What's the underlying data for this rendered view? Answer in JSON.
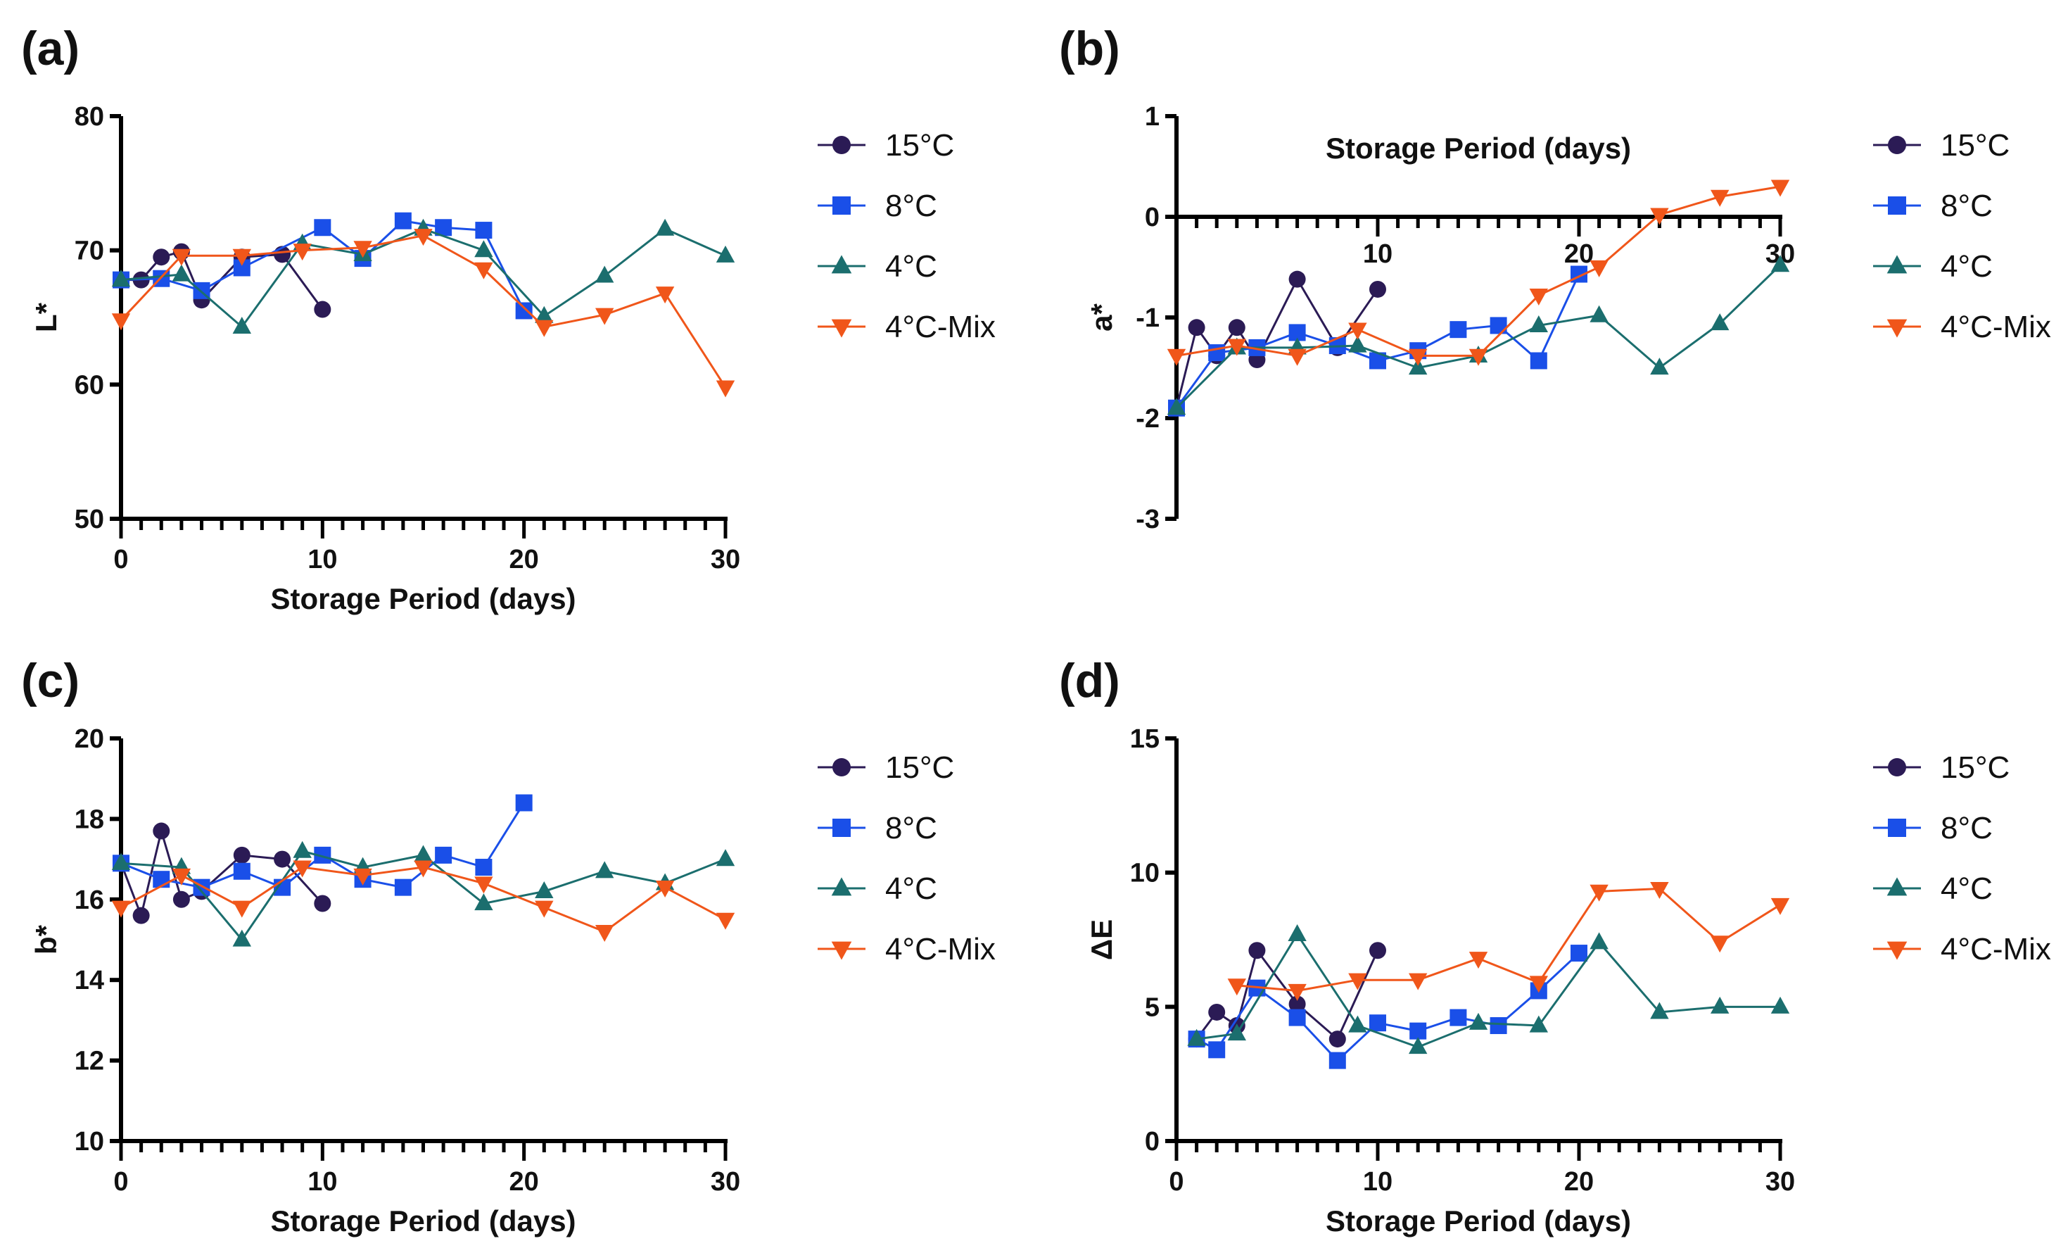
{
  "chart_data": [
    {
      "panel": "(a)",
      "type": "line",
      "xlabel": "Storage Period (days)",
      "ylabel": "L*",
      "xlim": [
        0,
        30
      ],
      "ylim": [
        50,
        80
      ],
      "xticks": [
        0,
        10,
        20,
        30
      ],
      "yticks": [
        50,
        60,
        70,
        80
      ],
      "x_axis_position": "bottom",
      "series": [
        {
          "name": "15°C",
          "x": [
            0,
            1,
            2,
            3,
            4,
            6,
            8,
            10
          ],
          "y": [
            67.8,
            67.8,
            69.5,
            69.9,
            66.3,
            69.5,
            69.7,
            65.6
          ]
        },
        {
          "name": "8°C",
          "x": [
            0,
            2,
            4,
            6,
            10,
            12,
            14,
            16,
            18,
            20
          ],
          "y": [
            67.8,
            67.9,
            67.0,
            68.7,
            71.7,
            69.4,
            72.2,
            71.7,
            71.5,
            65.5
          ]
        },
        {
          "name": "4°C",
          "x": [
            0,
            3,
            6,
            9,
            12,
            15,
            18,
            21,
            24,
            27,
            30
          ],
          "y": [
            67.8,
            68.2,
            64.3,
            70.5,
            69.7,
            71.6,
            70.0,
            65.1,
            68.1,
            71.6,
            69.6
          ]
        },
        {
          "name": "4°C-Mix",
          "x": [
            0,
            3,
            6,
            9,
            12,
            15,
            18,
            21,
            24,
            27,
            30
          ],
          "y": [
            64.8,
            69.6,
            69.6,
            70.0,
            70.2,
            71.1,
            68.6,
            64.3,
            65.2,
            66.8,
            59.8
          ]
        }
      ]
    },
    {
      "panel": "(b)",
      "type": "line",
      "xlabel": "Storage Period (days)",
      "ylabel": "a*",
      "xlim": [
        0,
        30
      ],
      "ylim": [
        -3,
        1
      ],
      "xticks": [
        10,
        20,
        30
      ],
      "yticks": [
        -3,
        -2,
        -1,
        0,
        1
      ],
      "x_axis_position": "y=0, title above",
      "series": [
        {
          "name": "15°C",
          "x": [
            0,
            1,
            2,
            3,
            4,
            6,
            8,
            10
          ],
          "y": [
            -1.9,
            -1.1,
            -1.38,
            -1.1,
            -1.42,
            -0.62,
            -1.3,
            -0.72
          ]
        },
        {
          "name": "8°C",
          "x": [
            0,
            2,
            4,
            6,
            8,
            10,
            12,
            14,
            16,
            18,
            20
          ],
          "y": [
            -1.9,
            -1.35,
            -1.3,
            -1.15,
            -1.28,
            -1.43,
            -1.33,
            -1.12,
            -1.08,
            -1.43,
            -0.57
          ]
        },
        {
          "name": "4°C",
          "x": [
            0,
            3,
            6,
            9,
            12,
            15,
            18,
            21,
            24,
            27,
            30
          ],
          "y": [
            -1.9,
            -1.3,
            -1.3,
            -1.28,
            -1.5,
            -1.38,
            -1.08,
            -0.98,
            -1.5,
            -1.06,
            -0.48
          ]
        },
        {
          "name": "4°C-Mix",
          "x": [
            0,
            3,
            6,
            9,
            12,
            15,
            18,
            21,
            24,
            27,
            30
          ],
          "y": [
            -1.38,
            -1.28,
            -1.38,
            -1.12,
            -1.38,
            -1.38,
            -0.78,
            -0.5,
            0.02,
            0.2,
            0.3
          ]
        }
      ]
    },
    {
      "panel": "(c)",
      "type": "line",
      "xlabel": "Storage Period (days)",
      "ylabel": "b*",
      "xlim": [
        0,
        30
      ],
      "ylim": [
        10,
        20
      ],
      "xticks": [
        0,
        10,
        20,
        30
      ],
      "yticks": [
        10,
        12,
        14,
        16,
        18,
        20
      ],
      "x_axis_position": "bottom",
      "series": [
        {
          "name": "15°C",
          "x": [
            0,
            1,
            2,
            3,
            4,
            6,
            8,
            10
          ],
          "y": [
            16.9,
            15.6,
            17.7,
            16.0,
            16.2,
            17.1,
            17.0,
            15.9
          ]
        },
        {
          "name": "8°C",
          "x": [
            0,
            2,
            4,
            6,
            8,
            10,
            12,
            14,
            16,
            18,
            20
          ],
          "y": [
            16.9,
            16.5,
            16.3,
            16.7,
            16.3,
            17.1,
            16.5,
            16.3,
            17.1,
            16.8,
            18.4
          ]
        },
        {
          "name": "4°C",
          "x": [
            0,
            3,
            6,
            9,
            12,
            15,
            18,
            21,
            24,
            27,
            30
          ],
          "y": [
            16.9,
            16.8,
            15.0,
            17.2,
            16.8,
            17.1,
            15.9,
            16.2,
            16.7,
            16.4,
            17.0
          ]
        },
        {
          "name": "4°C-Mix",
          "x": [
            0,
            3,
            6,
            9,
            12,
            15,
            18,
            21,
            24,
            27,
            30
          ],
          "y": [
            15.8,
            16.6,
            15.8,
            16.8,
            16.6,
            16.8,
            16.4,
            15.8,
            15.2,
            16.3,
            15.5
          ]
        }
      ]
    },
    {
      "panel": "(d)",
      "type": "line",
      "xlabel": "Storage Period (days)",
      "ylabel": "ΔE",
      "xlim": [
        0,
        30
      ],
      "ylim": [
        0,
        15
      ],
      "xticks": [
        0,
        10,
        20,
        30
      ],
      "yticks": [
        0,
        5,
        10,
        15
      ],
      "x_axis_position": "bottom",
      "series": [
        {
          "name": "15°C",
          "x": [
            1,
            2,
            3,
            4,
            6,
            8,
            10
          ],
          "y": [
            3.8,
            4.8,
            4.3,
            7.1,
            5.1,
            3.8,
            7.1
          ]
        },
        {
          "name": "8°C",
          "x": [
            1,
            2,
            4,
            6,
            8,
            10,
            12,
            14,
            16,
            18,
            20
          ],
          "y": [
            3.8,
            3.4,
            5.7,
            4.6,
            3.0,
            4.4,
            4.1,
            4.6,
            4.3,
            5.6,
            7.0
          ]
        },
        {
          "name": "4°C",
          "x": [
            1,
            3,
            6,
            9,
            12,
            15,
            18,
            21,
            24,
            27,
            30
          ],
          "y": [
            3.8,
            4.0,
            7.7,
            4.3,
            3.5,
            4.4,
            4.3,
            7.4,
            4.8,
            5.0,
            5.0
          ]
        },
        {
          "name": "4°C-Mix",
          "x": [
            3,
            6,
            9,
            12,
            15,
            18,
            21,
            24,
            27,
            30
          ],
          "y": [
            5.8,
            5.6,
            6.0,
            6.0,
            6.8,
            5.9,
            9.3,
            9.4,
            7.4,
            8.8
          ]
        }
      ]
    }
  ],
  "series_styles": [
    {
      "color": "#2b1b55",
      "marker": "circle"
    },
    {
      "color": "#1a4fe8",
      "marker": "square"
    },
    {
      "color": "#1b6e6e",
      "marker": "triangle-up"
    },
    {
      "color": "#f0561a",
      "marker": "triangle-down"
    }
  ]
}
